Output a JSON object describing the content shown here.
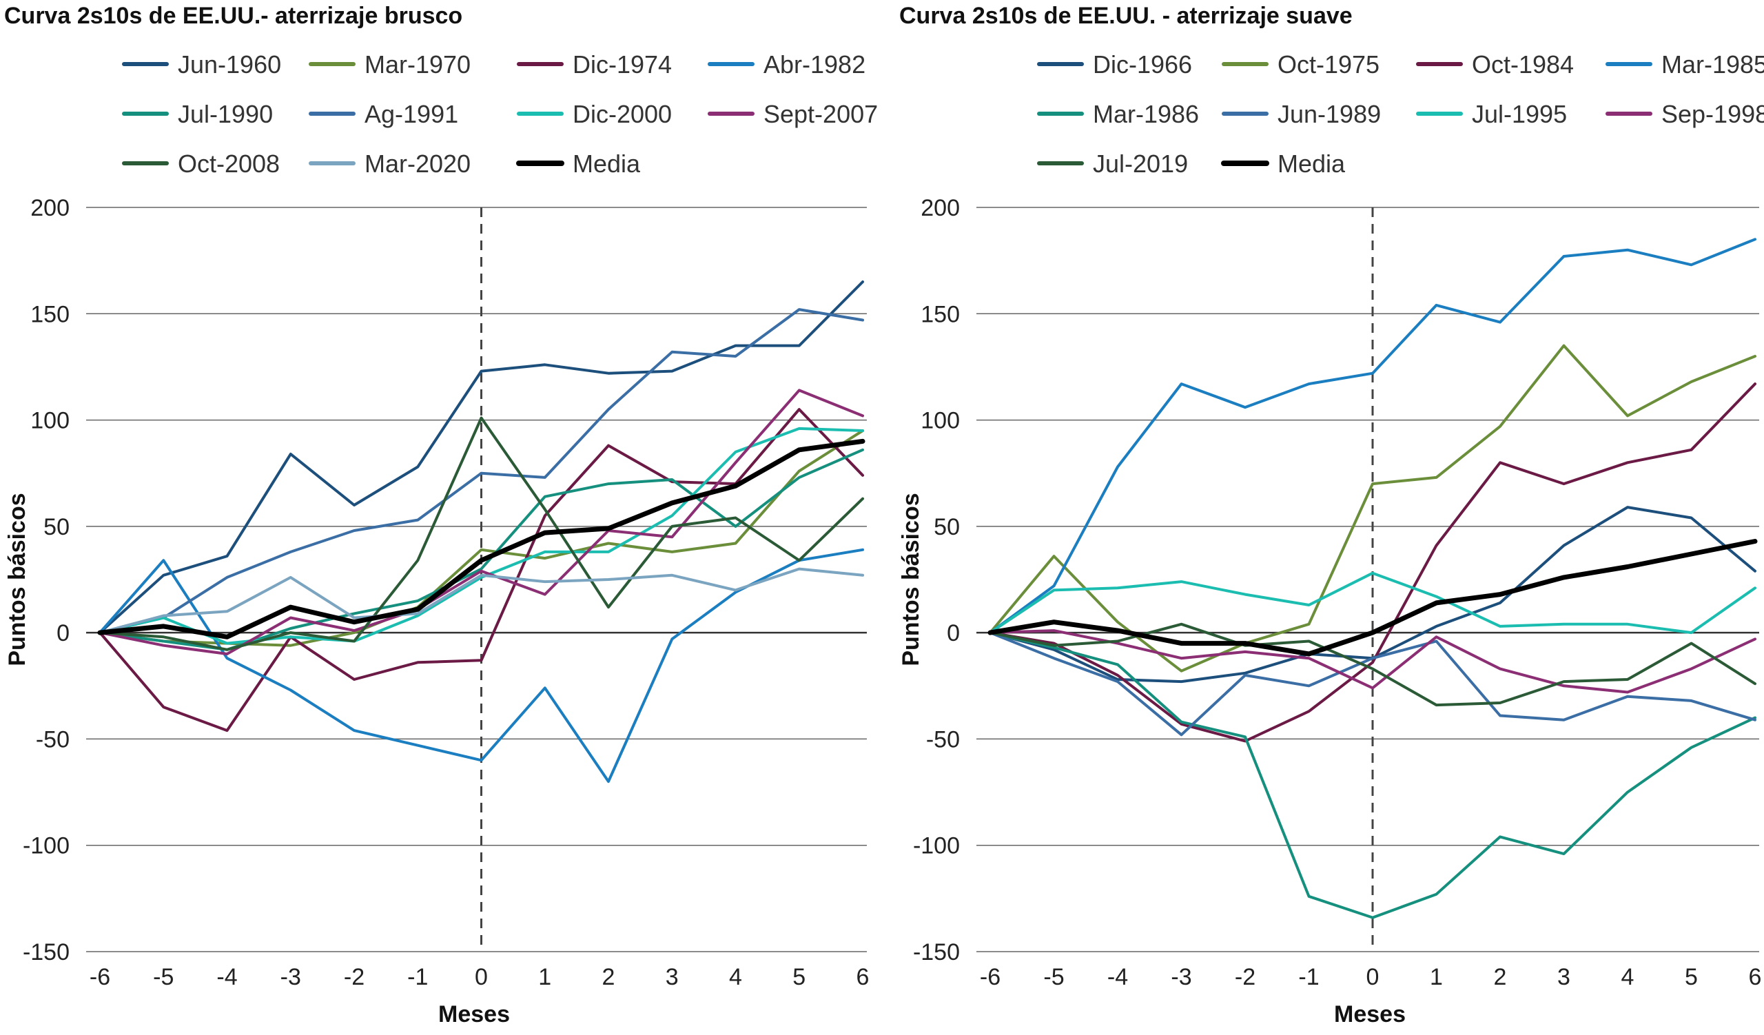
{
  "chart_data": [
    {
      "type": "line",
      "title": "Curva 2s10s de EE.UU.- aterrizaje brusco",
      "xlabel": "Meses",
      "ylabel": "Puntos básicos",
      "x": [
        -6,
        -5,
        -4,
        -3,
        -2,
        -1,
        0,
        1,
        2,
        3,
        4,
        5,
        6
      ],
      "x_tick_labels": [
        "-6",
        "-5",
        "-4",
        "-3",
        "-2",
        "-1",
        "0",
        "1",
        "2",
        "3",
        "4",
        "5",
        "6"
      ],
      "ylim": [
        -150,
        200
      ],
      "y_ticks": [
        -150,
        -100,
        -50,
        0,
        50,
        100,
        150,
        200
      ],
      "y_tick_labels": [
        "-150",
        "-100",
        "-50",
        "0",
        "50",
        "100",
        "150",
        "200"
      ],
      "vertical_reference_x": 0,
      "grid": "horizontal",
      "legend_position": "top",
      "series": [
        {
          "name": "Jun-1960",
          "color": "#1d4f7c",
          "width": 4,
          "values": [
            0,
            27,
            36,
            84,
            60,
            78,
            123,
            126,
            122,
            123,
            135,
            135,
            165
          ]
        },
        {
          "name": "Mar-1970",
          "color": "#6b8e3a",
          "width": 4,
          "values": [
            0,
            -4,
            -5,
            -6,
            0,
            12,
            39,
            35,
            42,
            38,
            42,
            76,
            95
          ]
        },
        {
          "name": "Dic-1974",
          "color": "#6a1a44",
          "width": 4,
          "values": [
            0,
            -35,
            -46,
            -2,
            -22,
            -14,
            -13,
            55,
            88,
            71,
            70,
            105,
            74
          ]
        },
        {
          "name": "Abr-1982",
          "color": "#1a7ec0",
          "width": 4,
          "values": [
            0,
            34,
            -12,
            -27,
            -46,
            -53,
            -60,
            -26,
            -70,
            -3,
            19,
            34,
            39
          ]
        },
        {
          "name": "Jul-1990",
          "color": "#16907e",
          "width": 4,
          "values": [
            0,
            -4,
            -8,
            2,
            9,
            15,
            30,
            64,
            70,
            72,
            50,
            73,
            86
          ]
        },
        {
          "name": "Ag-1991",
          "color": "#3a6ea5",
          "width": 4,
          "values": [
            0,
            7,
            26,
            38,
            48,
            53,
            75,
            73,
            105,
            132,
            130,
            152,
            147
          ]
        },
        {
          "name": "Dic-2000",
          "color": "#1bbdb0",
          "width": 4,
          "values": [
            0,
            7,
            -5,
            -2,
            -4,
            8,
            26,
            38,
            38,
            55,
            85,
            96,
            95
          ]
        },
        {
          "name": "Sept-2007",
          "color": "#8b2e74",
          "width": 4,
          "values": [
            0,
            -6,
            -10,
            7,
            1,
            11,
            29,
            18,
            48,
            45,
            80,
            114,
            102
          ]
        },
        {
          "name": "Oct-2008",
          "color": "#2b5a36",
          "width": 4,
          "values": [
            0,
            -2,
            -8,
            0,
            -4,
            34,
            101,
            58,
            12,
            50,
            54,
            34,
            63
          ]
        },
        {
          "name": "Mar-2020",
          "color": "#7aa4c0",
          "width": 4,
          "values": [
            0,
            8,
            10,
            26,
            7,
            9,
            27,
            24,
            25,
            27,
            20,
            30,
            27
          ]
        },
        {
          "name": "Media",
          "color": "#000000",
          "width": 7,
          "values": [
            0,
            3,
            -2,
            12,
            5,
            11,
            34,
            47,
            49,
            61,
            69,
            86,
            90
          ]
        }
      ]
    },
    {
      "type": "line",
      "title": "Curva 2s10s de EE.UU. - aterrizaje suave",
      "xlabel": "Meses",
      "ylabel": "Puntos básicos",
      "x": [
        -6,
        -5,
        -4,
        -3,
        -2,
        -1,
        0,
        1,
        2,
        3,
        4,
        5,
        6
      ],
      "x_tick_labels": [
        "-6",
        "-5",
        "-4",
        "-3",
        "-2",
        "-1",
        "0",
        "1",
        "2",
        "3",
        "4",
        "5",
        "6"
      ],
      "ylim": [
        -150,
        200
      ],
      "y_ticks": [
        -150,
        -100,
        -50,
        0,
        50,
        100,
        150,
        200
      ],
      "y_tick_labels": [
        "-150",
        "-100",
        "-50",
        "0",
        "50",
        "100",
        "150",
        "200"
      ],
      "vertical_reference_x": 0,
      "grid": "horizontal",
      "legend_position": "top",
      "series": [
        {
          "name": "Dic-1966",
          "color": "#1d4f7c",
          "width": 4,
          "values": [
            0,
            -8,
            -22,
            -23,
            -19,
            -10,
            -12,
            3,
            14,
            41,
            59,
            54,
            29
          ]
        },
        {
          "name": "Oct-1975",
          "color": "#6b8e3a",
          "width": 4,
          "values": [
            0,
            36,
            5,
            -18,
            -5,
            4,
            70,
            73,
            97,
            135,
            102,
            118,
            130
          ]
        },
        {
          "name": "Oct-1984",
          "color": "#6a1a44",
          "width": 4,
          "values": [
            0,
            -5,
            -20,
            -43,
            -51,
            -37,
            -14,
            41,
            80,
            70,
            80,
            86,
            117
          ]
        },
        {
          "name": "Mar-1985",
          "color": "#1a7ec0",
          "width": 4,
          "values": [
            0,
            22,
            78,
            117,
            106,
            117,
            122,
            154,
            146,
            177,
            180,
            173,
            185
          ]
        },
        {
          "name": "Mar-1986",
          "color": "#16907e",
          "width": 4,
          "values": [
            0,
            -7,
            -15,
            -42,
            -49,
            -124,
            -134,
            -123,
            -96,
            -104,
            -75,
            -54,
            -40
          ]
        },
        {
          "name": "Jun-1989",
          "color": "#3a6ea5",
          "width": 4,
          "values": [
            0,
            -12,
            -23,
            -48,
            -20,
            -25,
            -12,
            -4,
            -39,
            -41,
            -30,
            -32,
            -41
          ]
        },
        {
          "name": "Jul-1995",
          "color": "#1bbdb0",
          "width": 4,
          "values": [
            0,
            20,
            21,
            24,
            18,
            13,
            28,
            17,
            3,
            4,
            4,
            0,
            21
          ]
        },
        {
          "name": "Sep-1998",
          "color": "#8b2e74",
          "width": 4,
          "values": [
            0,
            1,
            -5,
            -12,
            -9,
            -12,
            -26,
            -2,
            -17,
            -25,
            -28,
            -17,
            -3
          ]
        },
        {
          "name": "Jul-2019",
          "color": "#2b5a36",
          "width": 4,
          "values": [
            0,
            -6,
            -4,
            4,
            -6,
            -4,
            -17,
            -34,
            -33,
            -23,
            -22,
            -5,
            -24
          ]
        },
        {
          "name": "Media",
          "color": "#000000",
          "width": 7,
          "values": [
            0,
            5,
            1,
            -5,
            -5,
            -10,
            0,
            14,
            18,
            26,
            31,
            37,
            43
          ]
        }
      ]
    }
  ]
}
